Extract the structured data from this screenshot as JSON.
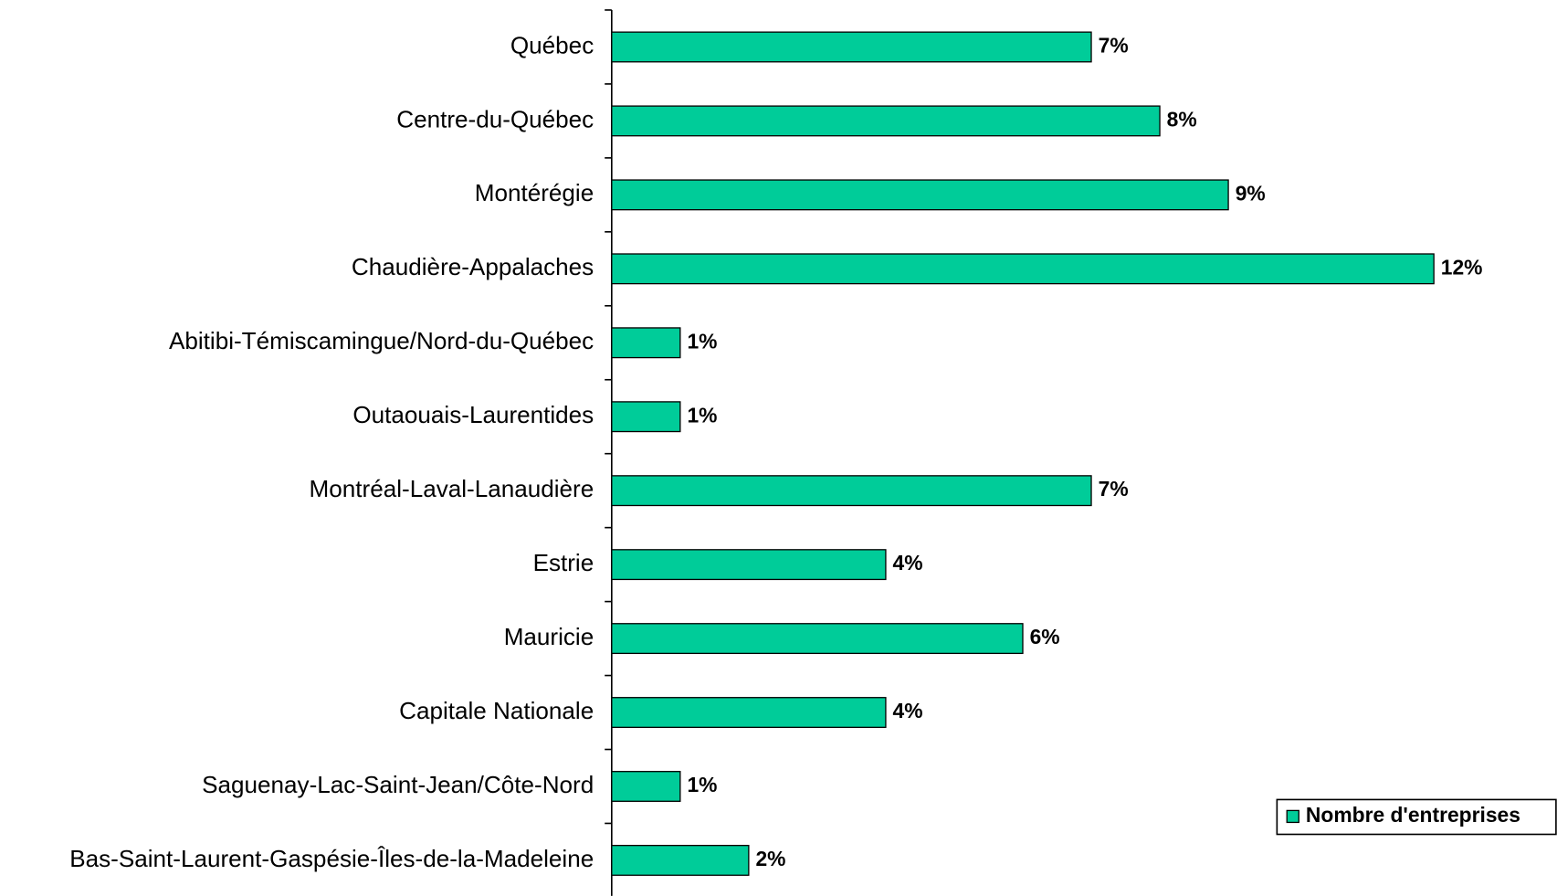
{
  "chart_data": {
    "type": "bar",
    "orientation": "horizontal",
    "categories": [
      "Québec",
      "Centre-du-Québec",
      "Montérégie",
      "Chaudière-Appalaches",
      "Abitibi-Témiscamingue/Nord-du-Québec",
      "Outaouais-Laurentides",
      "Montréal-Laval-Lanaudière",
      "Estrie",
      "Mauricie",
      "Capitale Nationale",
      "Saguenay-Lac-Saint-Jean/Côte-Nord",
      "Bas-Saint-Laurent-Gaspésie-Îles-de-la-Madeleine"
    ],
    "series": [
      {
        "name": "Nombre d'entreprises",
        "color": "#00cc99",
        "values": [
          7,
          8,
          9,
          12,
          1,
          1,
          7,
          4,
          6,
          4,
          1,
          2
        ],
        "value_labels": [
          "7%",
          "8%",
          "9%",
          "12%",
          "1%",
          "1%",
          "7%",
          "4%",
          "6%",
          "4%",
          "1%",
          "2%"
        ]
      }
    ],
    "legend": "lower right"
  }
}
